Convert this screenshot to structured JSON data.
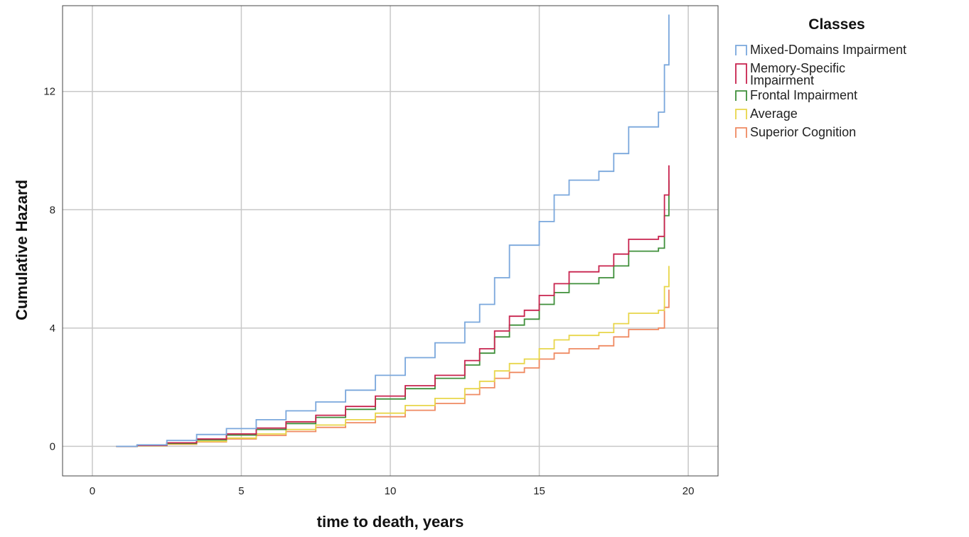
{
  "chart_data": {
    "type": "line",
    "xlabel": "time to death, years",
    "ylabel": "Cumulative Hazard",
    "xlim": [
      -1,
      21
    ],
    "ylim": [
      -1,
      14.9
    ],
    "x_ticks": [
      0,
      5,
      10,
      15,
      20
    ],
    "y_ticks": [
      0,
      4,
      8,
      12
    ],
    "grid": true,
    "step": true,
    "legend": {
      "title": "Classes",
      "placement": "top-right, outside plot"
    },
    "series": [
      {
        "name": "Mixed-Domains Impairment",
        "color": "#7aa7dc",
        "x": [
          0.8,
          1.5,
          2.5,
          3.5,
          4.5,
          5.5,
          6.5,
          7.5,
          8.5,
          9.5,
          10.5,
          11.5,
          12.5,
          13.0,
          13.5,
          14.0,
          14.5,
          15.0,
          15.5,
          16.0,
          16.5,
          17.0,
          17.5,
          18.0,
          18.5,
          19.0,
          19.2,
          19.35
        ],
        "y": [
          0,
          0.05,
          0.2,
          0.4,
          0.6,
          0.9,
          1.2,
          1.5,
          1.9,
          2.4,
          3.0,
          3.5,
          4.2,
          4.8,
          5.7,
          6.8,
          6.8,
          7.6,
          8.5,
          9.0,
          9.0,
          9.3,
          9.9,
          10.8,
          10.8,
          11.3,
          12.9,
          14.6
        ]
      },
      {
        "name": "Memory-Specific Impairment",
        "color": "#c8234e",
        "x": [
          0.8,
          1.5,
          2.5,
          3.5,
          4.5,
          5.5,
          6.5,
          7.5,
          8.5,
          9.5,
          10.5,
          11.5,
          12.5,
          13.0,
          13.5,
          14.0,
          14.5,
          15.0,
          15.5,
          16.0,
          16.5,
          17.0,
          17.5,
          18.0,
          18.5,
          19.0,
          19.2,
          19.35
        ],
        "y": [
          0,
          0.03,
          0.12,
          0.25,
          0.42,
          0.62,
          0.83,
          1.05,
          1.35,
          1.7,
          2.05,
          2.4,
          2.9,
          3.3,
          3.9,
          4.4,
          4.6,
          5.1,
          5.5,
          5.9,
          5.9,
          6.1,
          6.5,
          7.0,
          7.0,
          7.1,
          8.5,
          9.5
        ]
      },
      {
        "name": "Frontal Impairment",
        "color": "#3f8f3a",
        "x": [
          0.8,
          1.5,
          2.5,
          3.5,
          4.5,
          5.5,
          6.5,
          7.5,
          8.5,
          9.5,
          10.5,
          11.5,
          12.5,
          13.0,
          13.5,
          14.0,
          14.5,
          15.0,
          15.5,
          16.0,
          16.5,
          17.0,
          17.5,
          18.0,
          18.5,
          19.0,
          19.2,
          19.35
        ],
        "y": [
          0,
          0.03,
          0.1,
          0.22,
          0.38,
          0.57,
          0.77,
          0.98,
          1.25,
          1.6,
          1.95,
          2.3,
          2.75,
          3.15,
          3.7,
          4.1,
          4.3,
          4.8,
          5.2,
          5.5,
          5.5,
          5.7,
          6.1,
          6.6,
          6.6,
          6.7,
          7.8,
          9.0
        ]
      },
      {
        "name": "Average",
        "color": "#e8d64a",
        "x": [
          0.8,
          1.5,
          2.5,
          3.5,
          4.5,
          5.5,
          6.5,
          7.5,
          8.5,
          9.5,
          10.5,
          11.5,
          12.5,
          13.0,
          13.5,
          14.0,
          14.5,
          15.0,
          15.5,
          16.0,
          16.5,
          17.0,
          17.5,
          18.0,
          18.5,
          19.0,
          19.2,
          19.35
        ],
        "y": [
          0,
          0.02,
          0.08,
          0.17,
          0.28,
          0.42,
          0.57,
          0.72,
          0.9,
          1.12,
          1.38,
          1.62,
          1.95,
          2.2,
          2.55,
          2.8,
          2.95,
          3.3,
          3.6,
          3.75,
          3.75,
          3.85,
          4.15,
          4.5,
          4.5,
          4.6,
          5.4,
          6.1
        ]
      },
      {
        "name": "Superior Cognition",
        "color": "#ef8a62",
        "x": [
          0.8,
          1.5,
          2.5,
          3.5,
          4.5,
          5.5,
          6.5,
          7.5,
          8.5,
          9.5,
          10.5,
          11.5,
          12.5,
          13.0,
          13.5,
          14.0,
          14.5,
          15.0,
          15.5,
          16.0,
          16.5,
          17.0,
          17.5,
          18.0,
          18.5,
          19.0,
          19.2,
          19.35
        ],
        "y": [
          0,
          0.02,
          0.07,
          0.15,
          0.25,
          0.37,
          0.5,
          0.64,
          0.8,
          1.0,
          1.22,
          1.45,
          1.75,
          1.98,
          2.3,
          2.5,
          2.65,
          2.95,
          3.15,
          3.3,
          3.3,
          3.4,
          3.7,
          3.95,
          3.95,
          4.0,
          4.7,
          5.3
        ]
      }
    ]
  }
}
